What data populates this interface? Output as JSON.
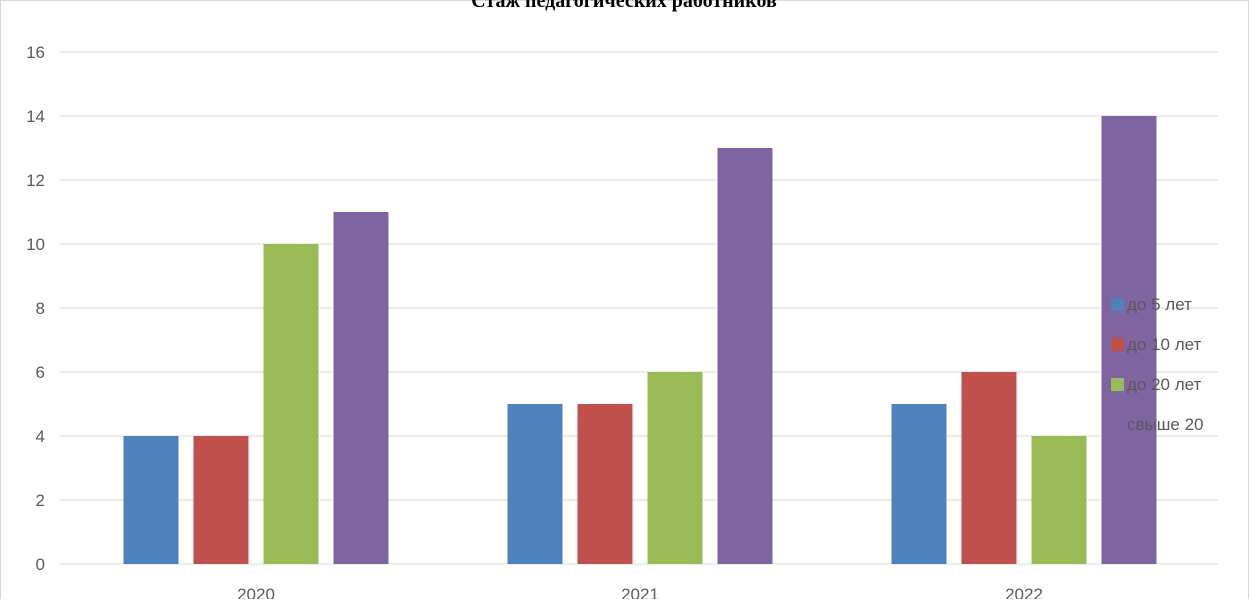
{
  "chart_data": {
    "type": "bar",
    "title": "Стаж педагогических работников",
    "categories": [
      "2020",
      "2021",
      "2022"
    ],
    "series": [
      {
        "name": "до 5 лет",
        "color": "#4F81BD",
        "values": [
          4,
          5,
          5
        ]
      },
      {
        "name": "до 10 лет",
        "color": "#C0504D",
        "values": [
          4,
          5,
          6
        ]
      },
      {
        "name": "до 20 лет",
        "color": "#9BBB59",
        "values": [
          10,
          6,
          4
        ]
      },
      {
        "name": "свыше 20",
        "color": "#8064A2",
        "values": [
          11,
          13,
          14
        ]
      }
    ],
    "ylim": [
      0,
      16
    ],
    "yticks": [
      "0",
      "2",
      "4",
      "6",
      "8",
      "10",
      "12",
      "14",
      "16"
    ],
    "grid": true,
    "legend_position": "right"
  }
}
